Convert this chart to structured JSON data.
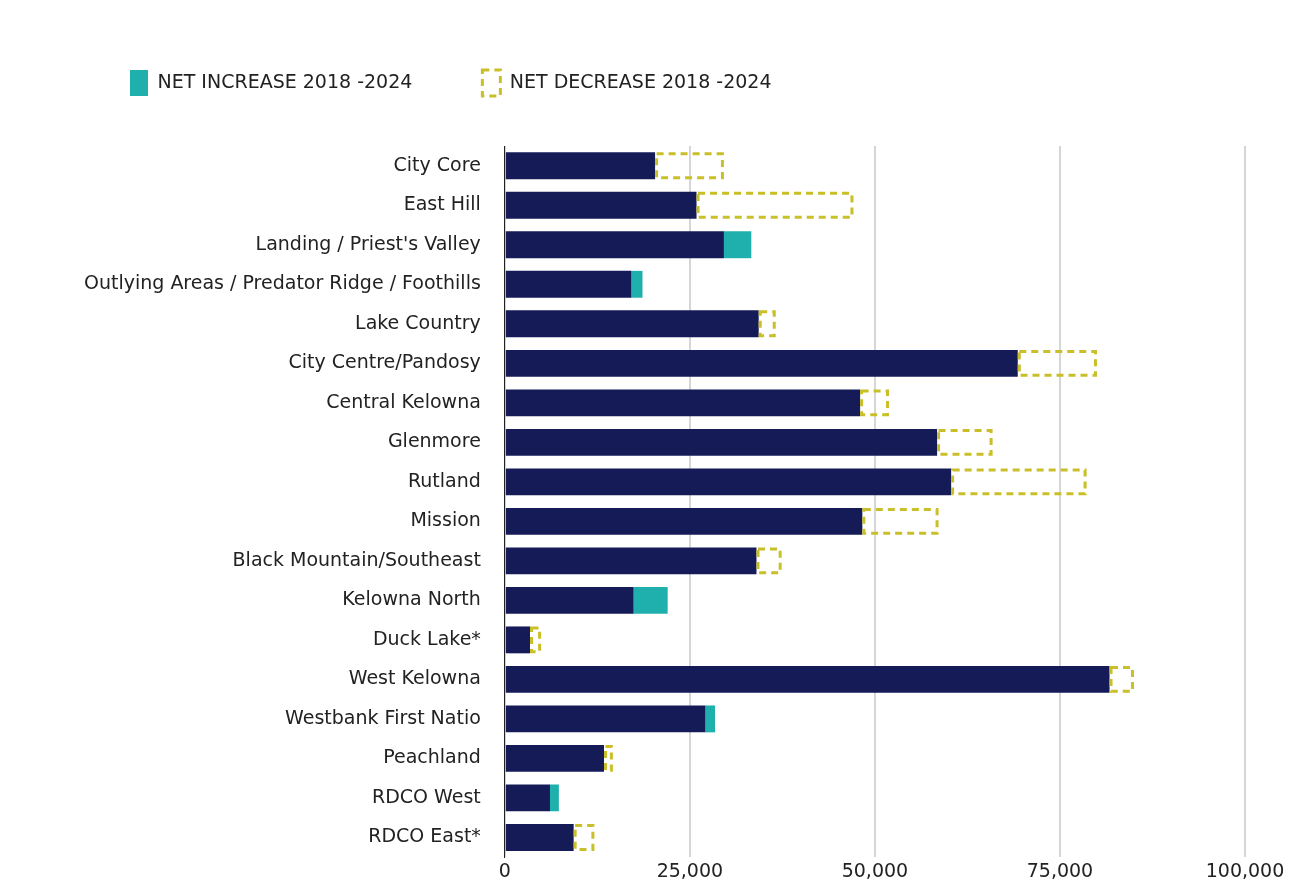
{
  "chart_data": {
    "type": "bar",
    "orientation": "horizontal",
    "stacked": true,
    "categories": [
      "City Core",
      "East Hill",
      "Landing / Priest's Valley",
      "Outlying Areas / Predator Ridge / Foothills",
      "Lake Country",
      "City Centre/Pandosy",
      "Central Kelowna",
      "Glenmore",
      "Rutland",
      "Mission",
      "Black Mountain/Southeast",
      "Kelowna North",
      "Duck Lake*",
      "West Kelowna",
      "Westbank First Natio",
      "Peachland",
      "RDCO West",
      "RDCO East*"
    ],
    "series": [
      {
        "color": "#141b57",
        "values": [
          20300,
          25900,
          29600,
          17100,
          34300,
          69300,
          48000,
          58400,
          60300,
          48300,
          34000,
          17400,
          3400,
          81700,
          27100,
          13400,
          6100,
          9300
        ]
      },
      {
        "name": "NET INCREASE 2018 -2024",
        "color": "#1fb0ad",
        "values": [
          null,
          null,
          3700,
          1500,
          null,
          null,
          null,
          null,
          null,
          null,
          null,
          4600,
          null,
          null,
          1300,
          null,
          1200,
          null
        ]
      },
      {
        "name": "NET DECREASE 2018 -2024",
        "color": "#c9bf28",
        "line_style": "dashed",
        "values": [
          9300,
          21200,
          null,
          null,
          2300,
          10700,
          3900,
          7500,
          18300,
          10300,
          3400,
          null,
          1500,
          3300,
          null,
          1200,
          null,
          2800
        ]
      }
    ],
    "xlim": [
      0,
      100000
    ],
    "xticks": [
      {
        "value": 0,
        "label": "0"
      },
      {
        "value": 25000,
        "label": "25,000"
      },
      {
        "value": 50000,
        "label": "50,000"
      },
      {
        "value": 75000,
        "label": "75,000"
      },
      {
        "value": 100000,
        "label": "100,000"
      }
    ],
    "grid": "x",
    "legend": "top left"
  }
}
